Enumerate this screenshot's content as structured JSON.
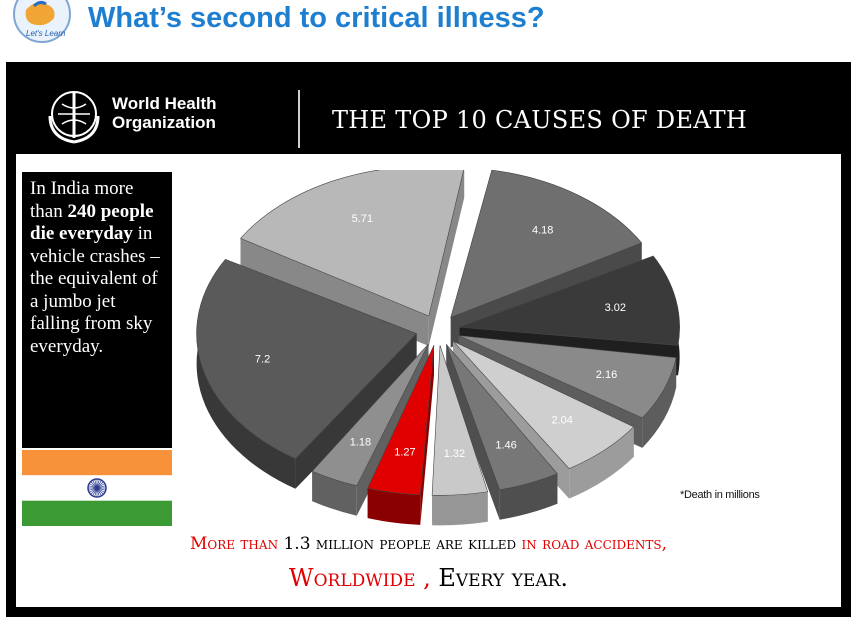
{
  "header": {
    "title": "What’s second to critical illness?",
    "logo_text": "Let's Learn"
  },
  "slide": {
    "org_name_line1": "World Health",
    "org_name_line2": "Organization",
    "title": "THE TOP 10 CAUSES OF DEATH",
    "footnote": "*Death in millions",
    "note": {
      "p1": "In India more than ",
      "bold1": "240 people die everyday",
      "p2": " in vehicle crashes –the equivalent of a jumbo jet falling from sky everyday."
    },
    "line1": {
      "red1": "More than ",
      "black": "1.3 million  people are killed",
      "red2": " in road accidents,"
    },
    "line2": {
      "red": "Worldwide , ",
      "black": "Every year."
    },
    "colors": {
      "highlight": "#e00000",
      "header": "#1e7fd0",
      "flag_saffron": "#f7923a",
      "flag_green": "#3c9a35",
      "chakra": "#2b3a8f"
    }
  },
  "chart_data": {
    "type": "pie",
    "style": "exploded-3d",
    "unit_note": "*Death in millions",
    "values": [
      4.18,
      3.02,
      2.16,
      2.04,
      1.46,
      1.32,
      1.27,
      1.18,
      7.2,
      5.71
    ],
    "labels": [
      "4.18",
      "3.02",
      "2.16",
      "2.04",
      "1.46",
      "1.32",
      "1.27",
      "1.18",
      "7.2",
      "5.71"
    ],
    "highlight_value": 1.27,
    "highlight_color": "#e00000"
  }
}
